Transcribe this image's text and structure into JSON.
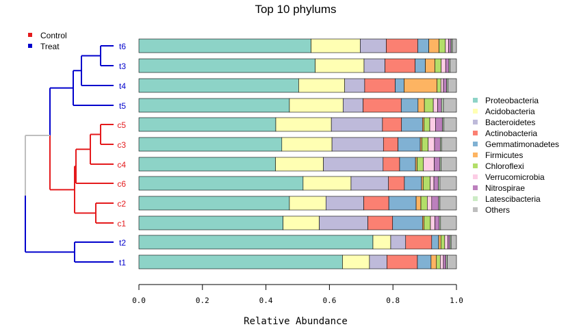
{
  "chart_data": {
    "type": "bar",
    "orientation": "horizontal",
    "stacked": true,
    "title": "Top 10 phylums",
    "xlabel": "Relative Abundance",
    "ylabel": "",
    "xlim": [
      0,
      1
    ],
    "xticks": [
      "0.0",
      "0.2",
      "0.4",
      "0.6",
      "0.8",
      "1.0"
    ],
    "grid": false,
    "categories": [
      "t6",
      "t3",
      "t4",
      "t5",
      "c5",
      "c3",
      "c4",
      "c6",
      "c2",
      "c1",
      "t2",
      "t1"
    ],
    "category_group": [
      "Treat",
      "Treat",
      "Treat",
      "Treat",
      "Control",
      "Control",
      "Control",
      "Control",
      "Control",
      "Control",
      "Treat",
      "Treat"
    ],
    "series": [
      {
        "name": "Proteobacteria",
        "color": "#8DD3C7",
        "values": [
          0.542,
          0.555,
          0.503,
          0.474,
          0.431,
          0.45,
          0.43,
          0.517,
          0.474,
          0.454,
          0.737,
          0.641
        ]
      },
      {
        "name": "Acidobacteria",
        "color": "#FFFFB3",
        "values": [
          0.155,
          0.154,
          0.145,
          0.169,
          0.175,
          0.158,
          0.151,
          0.151,
          0.115,
          0.114,
          0.056,
          0.085
        ]
      },
      {
        "name": "Bacteroidetes",
        "color": "#BEBADA",
        "values": [
          0.082,
          0.066,
          0.063,
          0.063,
          0.161,
          0.162,
          0.188,
          0.118,
          0.119,
          0.153,
          0.047,
          0.055
        ]
      },
      {
        "name": "Actinobacteria",
        "color": "#FB8072",
        "values": [
          0.099,
          0.095,
          0.096,
          0.12,
          0.06,
          0.046,
          0.052,
          0.05,
          0.079,
          0.078,
          0.082,
          0.096
        ]
      },
      {
        "name": "Gemmatimonadetes",
        "color": "#80B1D3",
        "values": [
          0.035,
          0.032,
          0.028,
          0.053,
          0.066,
          0.07,
          0.05,
          0.054,
          0.086,
          0.094,
          0.022,
          0.043
        ]
      },
      {
        "name": "Firmicutes",
        "color": "#FDB462",
        "values": [
          0.032,
          0.03,
          0.104,
          0.02,
          0.005,
          0.005,
          0.005,
          0.005,
          0.015,
          0.005,
          0.007,
          0.017
        ]
      },
      {
        "name": "Chloroflexi",
        "color": "#B3DE69",
        "values": [
          0.02,
          0.02,
          0.012,
          0.028,
          0.018,
          0.02,
          0.02,
          0.022,
          0.02,
          0.02,
          0.012,
          0.012
        ]
      },
      {
        "name": "Verrucomicrobia",
        "color": "#FCCDE5",
        "values": [
          0.01,
          0.014,
          0.008,
          0.014,
          0.018,
          0.02,
          0.034,
          0.012,
          0.014,
          0.014,
          0.01,
          0.01
        ]
      },
      {
        "name": "Nitrospirae",
        "color": "#BC80BD",
        "values": [
          0.008,
          0.01,
          0.01,
          0.012,
          0.022,
          0.018,
          0.018,
          0.014,
          0.022,
          0.014,
          0.006,
          0.008
        ]
      },
      {
        "name": "Latescibacteria",
        "color": "#CCEBC5",
        "values": [
          0.004,
          0.004,
          0.004,
          0.006,
          0.004,
          0.004,
          0.004,
          0.005,
          0.004,
          0.004,
          0.004,
          0.004
        ]
      },
      {
        "name": "Others",
        "color": "#BEBEBE",
        "values": [
          0.013,
          0.02,
          0.027,
          0.041,
          0.04,
          0.047,
          0.048,
          0.052,
          0.052,
          0.05,
          0.017,
          0.029
        ]
      }
    ],
    "dendrogram": {
      "legend": [
        {
          "label": "Control",
          "color": "#E41A1C"
        },
        {
          "label": "Treat",
          "color": "#0000CC"
        }
      ],
      "branch_colors": {
        "Treat": "#0000CC",
        "Control": "#E41A1C",
        "root": "#BEBEBE"
      }
    },
    "legend_position": "right"
  }
}
